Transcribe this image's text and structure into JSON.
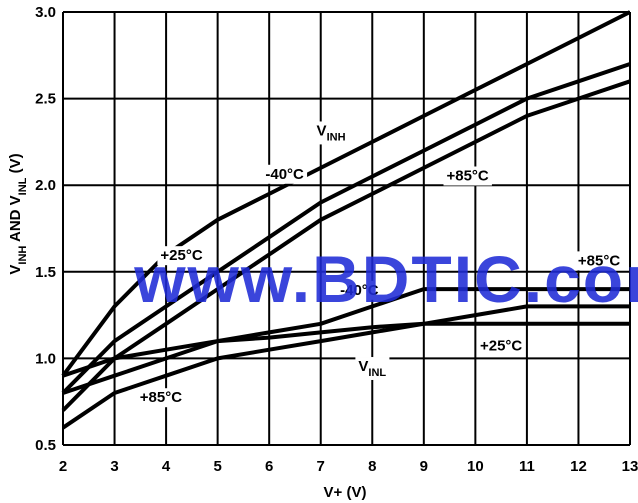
{
  "chart_data": {
    "type": "line",
    "xlabel": "V+ (V)",
    "ylabel_parts": [
      {
        "text": "V",
        "sub": false
      },
      {
        "text": "INH",
        "sub": true
      },
      {
        "text": " AND V",
        "sub": false
      },
      {
        "text": "INL",
        "sub": true
      },
      {
        "text": " (V)",
        "sub": false
      }
    ],
    "xlim": [
      2,
      13
    ],
    "ylim": [
      0.5,
      3.0
    ],
    "xticks": [
      2,
      3,
      4,
      5,
      6,
      7,
      8,
      9,
      10,
      11,
      12,
      13
    ],
    "yticks": [
      0.5,
      1.0,
      1.5,
      2.0,
      2.5,
      3.0
    ],
    "ytick_labels": [
      "0.5",
      "1.0",
      "1.5",
      "2.0",
      "2.5",
      "3.0"
    ],
    "grid": true,
    "series": [
      {
        "group": "VINH",
        "temp": "-40°C",
        "x": [
          2,
          3,
          4,
          5,
          6,
          7,
          8,
          9,
          10,
          11,
          12,
          13
        ],
        "y": [
          0.9,
          1.3,
          1.6,
          1.8,
          1.95,
          2.1,
          2.25,
          2.4,
          2.55,
          2.7,
          2.85,
          3.0
        ]
      },
      {
        "group": "VINH",
        "temp": "+25°C",
        "x": [
          2,
          3,
          4,
          5,
          6,
          7,
          8,
          9,
          10,
          11,
          12,
          13
        ],
        "y": [
          0.8,
          1.1,
          1.3,
          1.5,
          1.7,
          1.9,
          2.05,
          2.2,
          2.35,
          2.5,
          2.6,
          2.7
        ]
      },
      {
        "group": "VINH",
        "temp": "+85°C",
        "x": [
          2,
          3,
          4,
          5,
          6,
          7,
          8,
          9,
          10,
          11,
          12,
          13
        ],
        "y": [
          0.7,
          1.0,
          1.2,
          1.4,
          1.6,
          1.8,
          1.95,
          2.1,
          2.25,
          2.4,
          2.5,
          2.6
        ]
      },
      {
        "group": "VINL",
        "temp": "-40°C",
        "x": [
          2,
          3,
          4,
          5,
          6,
          7,
          8,
          9,
          10,
          11,
          12,
          13
        ],
        "y": [
          0.9,
          1.0,
          1.05,
          1.1,
          1.15,
          1.2,
          1.3,
          1.4,
          1.4,
          1.4,
          1.4,
          1.4
        ]
      },
      {
        "group": "VINL",
        "temp": "+25°C",
        "x": [
          2,
          3,
          4,
          5,
          6,
          7,
          8,
          9,
          10,
          11,
          12,
          13
        ],
        "y": [
          0.8,
          0.9,
          1.0,
          1.1,
          1.12,
          1.15,
          1.18,
          1.2,
          1.2,
          1.2,
          1.2,
          1.2
        ]
      },
      {
        "group": "VINL",
        "temp": "+85°C",
        "x": [
          2,
          3,
          4,
          5,
          6,
          7,
          8,
          9,
          10,
          11,
          12,
          13
        ],
        "y": [
          0.6,
          0.8,
          0.9,
          1.0,
          1.05,
          1.1,
          1.15,
          1.2,
          1.25,
          1.3,
          1.3,
          1.3
        ]
      }
    ],
    "annotations": [
      {
        "parts": [
          {
            "text": "V",
            "sub": false
          },
          {
            "text": "INH",
            "sub": true
          }
        ],
        "x": 7.2,
        "y": 2.31
      },
      {
        "parts": [
          {
            "text": "-40°C",
            "sub": false
          }
        ],
        "x": 6.3,
        "y": 2.06
      },
      {
        "parts": [
          {
            "text": "+85°C",
            "sub": false
          }
        ],
        "x": 9.85,
        "y": 2.05
      },
      {
        "parts": [
          {
            "text": "+25°C",
            "sub": false
          }
        ],
        "x": 4.3,
        "y": 1.59
      },
      {
        "parts": [
          {
            "text": "-40°C",
            "sub": false
          }
        ],
        "x": 7.75,
        "y": 1.39
      },
      {
        "parts": [
          {
            "text": "+85°C",
            "sub": false
          }
        ],
        "x": 12.4,
        "y": 1.56
      },
      {
        "parts": [
          {
            "text": "+25°C",
            "sub": false
          }
        ],
        "x": 10.5,
        "y": 1.07
      },
      {
        "parts": [
          {
            "text": "V",
            "sub": false
          },
          {
            "text": "INL",
            "sub": true
          }
        ],
        "x": 8.0,
        "y": 0.95
      },
      {
        "parts": [
          {
            "text": "+85°C",
            "sub": false
          }
        ],
        "x": 3.9,
        "y": 0.77
      }
    ],
    "watermark": "www.BDTIC.com",
    "colors": {
      "line": "#000000",
      "grid": "#000000",
      "watermark": "#1f2bd6"
    }
  }
}
